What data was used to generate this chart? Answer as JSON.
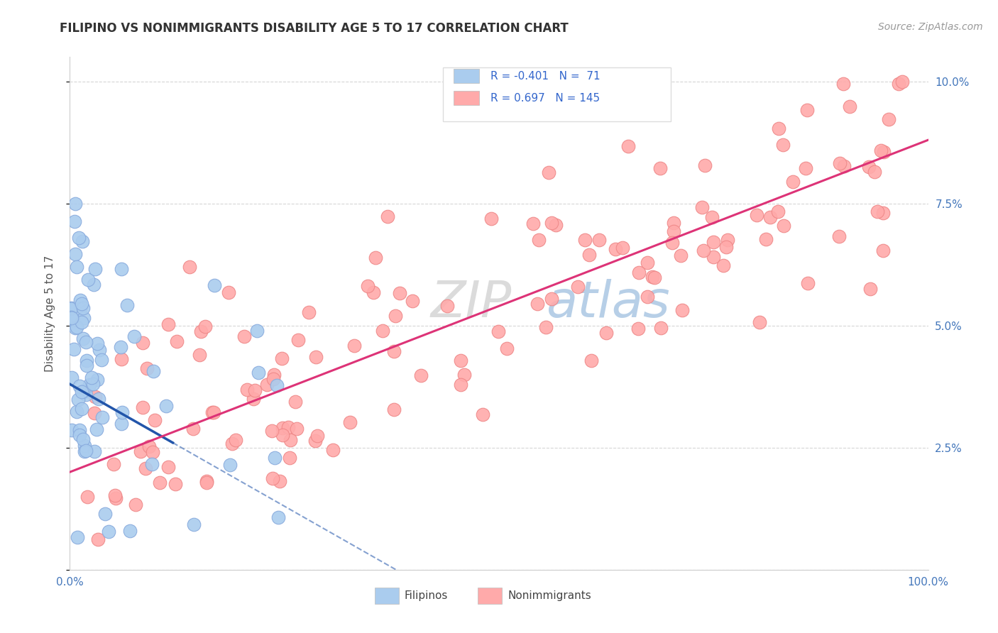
{
  "title": "FILIPINO VS NONIMMIGRANTS DISABILITY AGE 5 TO 17 CORRELATION CHART",
  "source_text": "Source: ZipAtlas.com",
  "ylabel": "Disability Age 5 to 17",
  "legend_labels": [
    "Filipinos",
    "Nonimmigrants"
  ],
  "r_filipino": -0.401,
  "n_filipino": 71,
  "r_nonimmigrant": 0.697,
  "n_nonimmigrant": 145,
  "title_color": "#333333",
  "title_fontsize": 12,
  "source_color": "#999999",
  "source_fontsize": 10,
  "ylabel_color": "#555555",
  "ylabel_fontsize": 11,
  "axis_label_color": "#4477bb",
  "tick_fontsize": 11,
  "xlim": [
    0.0,
    1.0
  ],
  "ylim": [
    0.0,
    0.105
  ],
  "blue_color": "#aaccee",
  "blue_edge_color": "#88aadd",
  "blue_line_color": "#2255aa",
  "pink_color": "#ffaaaa",
  "pink_edge_color": "#ee8888",
  "pink_line_color": "#dd3377",
  "grid_color": "#cccccc",
  "background_color": "#ffffff",
  "watermark_zip_color": "#cccccc",
  "watermark_atlas_color": "#99bbdd",
  "legend_text_color": "#3366cc",
  "legend_border_color": "#dddddd"
}
